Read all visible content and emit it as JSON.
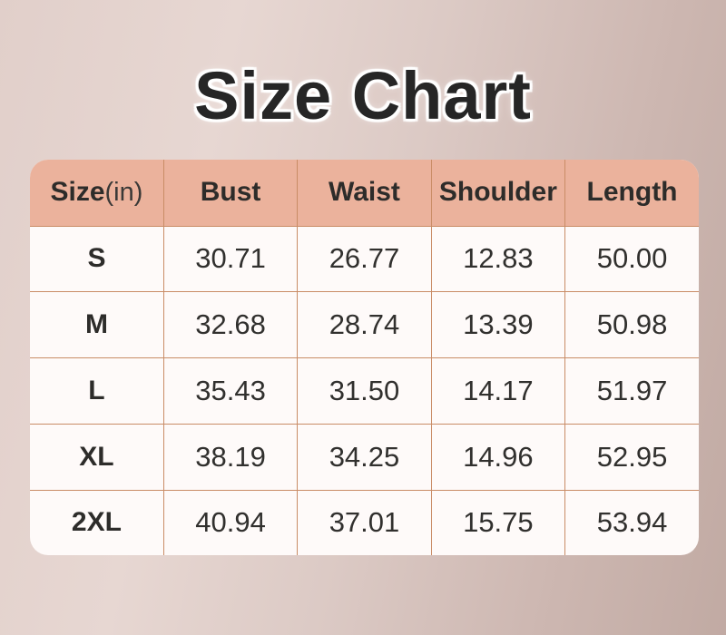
{
  "chart_data": {
    "type": "table",
    "title": "Size Chart",
    "unit": "in",
    "columns": [
      "Size(in)",
      "Bust",
      "Waist",
      "Shoulder",
      "Length"
    ],
    "header": {
      "size": "Size",
      "size_unit": "(in)",
      "bust": "Bust",
      "waist": "Waist",
      "shoulder": "Shoulder",
      "length": "Length"
    },
    "rows": [
      {
        "size": "S",
        "bust": "30.71",
        "waist": "26.77",
        "shoulder": "12.83",
        "length": "50.00"
      },
      {
        "size": "M",
        "bust": "32.68",
        "waist": "28.74",
        "shoulder": "13.39",
        "length": "50.98"
      },
      {
        "size": "L",
        "bust": "35.43",
        "waist": "31.50",
        "shoulder": "14.17",
        "length": "51.97"
      },
      {
        "size": "XL",
        "bust": "38.19",
        "waist": "34.25",
        "shoulder": "14.96",
        "length": "52.95"
      },
      {
        "size": "2XL",
        "bust": "40.94",
        "waist": "37.01",
        "shoulder": "15.75",
        "length": "53.94"
      }
    ]
  },
  "colors": {
    "header_bg": "#EBB29C",
    "cell_bg": "#FEFAF9",
    "grid_border": "#C98C66",
    "title_text": "#262626",
    "body_text": "#31302E",
    "background_left": "#E3D2CD",
    "background_right": "#C1AAA3"
  }
}
